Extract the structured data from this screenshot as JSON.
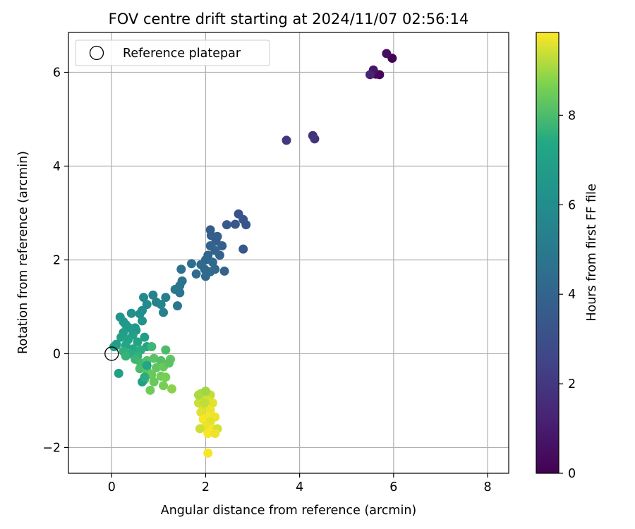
{
  "chart_data": {
    "type": "scatter",
    "title": "FOV centre drift starting at 2024/11/07 02:56:14",
    "xlabel": "Angular distance from reference (arcmin)",
    "ylabel": "Rotation from reference (arcmin)",
    "xlim": [
      -0.92,
      8.45
    ],
    "ylim": [
      -2.55,
      6.85
    ],
    "xticks": [
      0,
      2,
      4,
      6,
      8
    ],
    "yticks": [
      -2,
      0,
      2,
      4,
      6
    ],
    "grid": true,
    "legend": {
      "placement": "top-left",
      "entries": [
        {
          "label": "Reference platepar",
          "marker": "open-circle"
        }
      ]
    },
    "reference_point": {
      "x": 0,
      "y": 0
    },
    "colorbar": {
      "label": "Hours from first FF file",
      "colormap": "viridis",
      "range": [
        0,
        9.85
      ],
      "ticks": [
        0,
        2,
        4,
        6,
        8
      ]
    },
    "points": [
      {
        "x": 5.97,
        "y": 6.3,
        "h": 0.05
      },
      {
        "x": 5.85,
        "y": 6.4,
        "h": 0.45
      },
      {
        "x": 5.7,
        "y": 5.95,
        "h": 0.15
      },
      {
        "x": 5.62,
        "y": 5.96,
        "h": 0.3
      },
      {
        "x": 5.57,
        "y": 6.05,
        "h": 0.8
      },
      {
        "x": 5.5,
        "y": 5.95,
        "h": 1.2
      },
      {
        "x": 4.28,
        "y": 4.65,
        "h": 1.8
      },
      {
        "x": 4.32,
        "y": 4.58,
        "h": 1.9
      },
      {
        "x": 3.72,
        "y": 4.55,
        "h": 2.0
      },
      {
        "x": 2.7,
        "y": 2.98,
        "h": 3.1
      },
      {
        "x": 2.8,
        "y": 2.86,
        "h": 3.2
      },
      {
        "x": 2.86,
        "y": 2.75,
        "h": 3.3
      },
      {
        "x": 2.63,
        "y": 2.76,
        "h": 3.4
      },
      {
        "x": 2.45,
        "y": 2.75,
        "h": 3.5
      },
      {
        "x": 2.8,
        "y": 2.23,
        "h": 3.4
      },
      {
        "x": 2.1,
        "y": 2.64,
        "h": 3.6
      },
      {
        "x": 2.12,
        "y": 2.52,
        "h": 3.7
      },
      {
        "x": 2.25,
        "y": 2.5,
        "h": 3.8
      },
      {
        "x": 2.22,
        "y": 2.4,
        "h": 3.7
      },
      {
        "x": 2.1,
        "y": 2.3,
        "h": 3.9
      },
      {
        "x": 2.35,
        "y": 2.3,
        "h": 3.8
      },
      {
        "x": 2.2,
        "y": 2.2,
        "h": 4.0
      },
      {
        "x": 2.05,
        "y": 2.1,
        "h": 4.0
      },
      {
        "x": 2.3,
        "y": 2.1,
        "h": 3.9
      },
      {
        "x": 2.0,
        "y": 2.0,
        "h": 4.1
      },
      {
        "x": 2.15,
        "y": 1.95,
        "h": 4.2
      },
      {
        "x": 1.9,
        "y": 1.9,
        "h": 4.3
      },
      {
        "x": 2.2,
        "y": 1.8,
        "h": 4.2
      },
      {
        "x": 2.4,
        "y": 1.76,
        "h": 3.9
      },
      {
        "x": 2.1,
        "y": 1.75,
        "h": 4.3
      },
      {
        "x": 1.8,
        "y": 1.7,
        "h": 4.4
      },
      {
        "x": 2.0,
        "y": 1.65,
        "h": 4.3
      },
      {
        "x": 1.98,
        "y": 1.8,
        "h": 4.2
      },
      {
        "x": 1.7,
        "y": 1.92,
        "h": 4.5
      },
      {
        "x": 1.48,
        "y": 1.8,
        "h": 4.6
      },
      {
        "x": 1.5,
        "y": 1.55,
        "h": 4.7
      },
      {
        "x": 1.45,
        "y": 1.45,
        "h": 4.8
      },
      {
        "x": 1.35,
        "y": 1.37,
        "h": 4.9
      },
      {
        "x": 1.45,
        "y": 1.3,
        "h": 4.8
      },
      {
        "x": 1.4,
        "y": 1.02,
        "h": 5.0
      },
      {
        "x": 1.15,
        "y": 1.2,
        "h": 5.2
      },
      {
        "x": 0.95,
        "y": 1.1,
        "h": 5.4
      },
      {
        "x": 0.88,
        "y": 1.25,
        "h": 5.5
      },
      {
        "x": 1.05,
        "y": 1.05,
        "h": 5.6
      },
      {
        "x": 1.1,
        "y": 0.88,
        "h": 5.4
      },
      {
        "x": 0.68,
        "y": 1.2,
        "h": 5.8
      },
      {
        "x": 0.75,
        "y": 1.05,
        "h": 5.9
      },
      {
        "x": 0.65,
        "y": 0.92,
        "h": 6.0
      },
      {
        "x": 0.6,
        "y": 0.85,
        "h": 6.1
      },
      {
        "x": 0.42,
        "y": 0.86,
        "h": 6.2
      },
      {
        "x": 0.65,
        "y": 0.7,
        "h": 6.3
      },
      {
        "x": 0.18,
        "y": 0.78,
        "h": 6.4
      },
      {
        "x": 0.25,
        "y": 0.68,
        "h": 6.5
      },
      {
        "x": 0.3,
        "y": 0.62,
        "h": 6.6
      },
      {
        "x": 0.5,
        "y": 0.55,
        "h": 6.5
      },
      {
        "x": 0.38,
        "y": 0.55,
        "h": 6.7
      },
      {
        "x": 0.25,
        "y": 0.45,
        "h": 6.8
      },
      {
        "x": 0.52,
        "y": 0.5,
        "h": 6.6
      },
      {
        "x": 0.45,
        "y": 0.4,
        "h": 6.9
      },
      {
        "x": 0.2,
        "y": 0.35,
        "h": 7.0
      },
      {
        "x": 0.7,
        "y": 0.35,
        "h": 6.9
      },
      {
        "x": 0.35,
        "y": 0.3,
        "h": 7.1
      },
      {
        "x": 0.55,
        "y": 0.25,
        "h": 7.2
      },
      {
        "x": 0.1,
        "y": 0.2,
        "h": 7.0
      },
      {
        "x": 0.3,
        "y": 0.18,
        "h": 7.3
      },
      {
        "x": 0.75,
        "y": 0.15,
        "h": 7.2
      },
      {
        "x": 0.05,
        "y": 0.15,
        "h": 7.1
      },
      {
        "x": 0.45,
        "y": 0.1,
        "h": 7.4
      },
      {
        "x": 0.62,
        "y": 0.08,
        "h": 7.5
      },
      {
        "x": 0.25,
        "y": 0.05,
        "h": 7.6
      },
      {
        "x": 0.4,
        "y": 0.0,
        "h": 7.5
      },
      {
        "x": 0.3,
        "y": -0.05,
        "h": 7.7
      },
      {
        "x": 0.55,
        "y": -0.05,
        "h": 7.6
      },
      {
        "x": 0.85,
        "y": 0.15,
        "h": 7.8
      },
      {
        "x": 1.15,
        "y": 0.08,
        "h": 8.0
      },
      {
        "x": 0.5,
        "y": -0.12,
        "h": 7.8
      },
      {
        "x": 0.62,
        "y": -0.2,
        "h": 7.9
      },
      {
        "x": 0.75,
        "y": -0.15,
        "h": 8.1
      },
      {
        "x": 0.9,
        "y": -0.1,
        "h": 8.2
      },
      {
        "x": 1.05,
        "y": -0.15,
        "h": 8.1
      },
      {
        "x": 1.25,
        "y": -0.12,
        "h": 8.3
      },
      {
        "x": 0.6,
        "y": -0.32,
        "h": 8.0
      },
      {
        "x": 0.75,
        "y": -0.35,
        "h": 8.2
      },
      {
        "x": 0.95,
        "y": -0.3,
        "h": 8.3
      },
      {
        "x": 1.1,
        "y": -0.28,
        "h": 8.4
      },
      {
        "x": 1.22,
        "y": -0.2,
        "h": 8.2
      },
      {
        "x": 0.85,
        "y": -0.45,
        "h": 8.4
      },
      {
        "x": 1.05,
        "y": -0.48,
        "h": 8.5
      },
      {
        "x": 1.15,
        "y": -0.5,
        "h": 8.6
      },
      {
        "x": 0.7,
        "y": -0.55,
        "h": 8.3
      },
      {
        "x": 0.65,
        "y": -0.6,
        "h": 7.0
      },
      {
        "x": 0.9,
        "y": -0.6,
        "h": 8.4
      },
      {
        "x": 1.1,
        "y": -0.68,
        "h": 8.6
      },
      {
        "x": 1.28,
        "y": -0.75,
        "h": 8.8
      },
      {
        "x": 0.82,
        "y": -0.78,
        "h": 8.5
      },
      {
        "x": 0.7,
        "y": -0.5,
        "h": 7.5
      },
      {
        "x": 0.75,
        "y": -0.25,
        "h": 7.3
      },
      {
        "x": 0.15,
        "y": -0.42,
        "h": 6.9
      },
      {
        "x": 0.1,
        "y": 0.18,
        "h": 6.8
      },
      {
        "x": 1.9,
        "y": -0.85,
        "h": 9.2
      },
      {
        "x": 2.1,
        "y": -0.88,
        "h": 9.3
      },
      {
        "x": 1.95,
        "y": -0.95,
        "h": 9.4
      },
      {
        "x": 2.05,
        "y": -1.0,
        "h": 9.5
      },
      {
        "x": 1.85,
        "y": -1.05,
        "h": 9.4
      },
      {
        "x": 2.15,
        "y": -1.05,
        "h": 9.6
      },
      {
        "x": 1.95,
        "y": -1.15,
        "h": 9.5
      },
      {
        "x": 2.1,
        "y": -1.2,
        "h": 9.7
      },
      {
        "x": 1.9,
        "y": -1.25,
        "h": 9.6
      },
      {
        "x": 2.05,
        "y": -1.35,
        "h": 9.8
      },
      {
        "x": 2.2,
        "y": -1.35,
        "h": 9.7
      },
      {
        "x": 1.95,
        "y": -1.4,
        "h": 9.8
      },
      {
        "x": 2.1,
        "y": -1.45,
        "h": 9.6
      },
      {
        "x": 2.0,
        "y": -1.55,
        "h": 9.7
      },
      {
        "x": 1.88,
        "y": -1.6,
        "h": 9.4
      },
      {
        "x": 2.15,
        "y": -1.6,
        "h": 9.8
      },
      {
        "x": 2.25,
        "y": -1.6,
        "h": 9.5
      },
      {
        "x": 2.05,
        "y": -1.7,
        "h": 9.8
      },
      {
        "x": 2.2,
        "y": -1.7,
        "h": 9.7
      },
      {
        "x": 2.05,
        "y": -2.12,
        "h": 9.8
      },
      {
        "x": 1.85,
        "y": -0.88,
        "h": 9.1
      },
      {
        "x": 2.0,
        "y": -0.8,
        "h": 9.0
      },
      {
        "x": 1.98,
        "y": -1.05,
        "h": 9.3
      }
    ]
  }
}
